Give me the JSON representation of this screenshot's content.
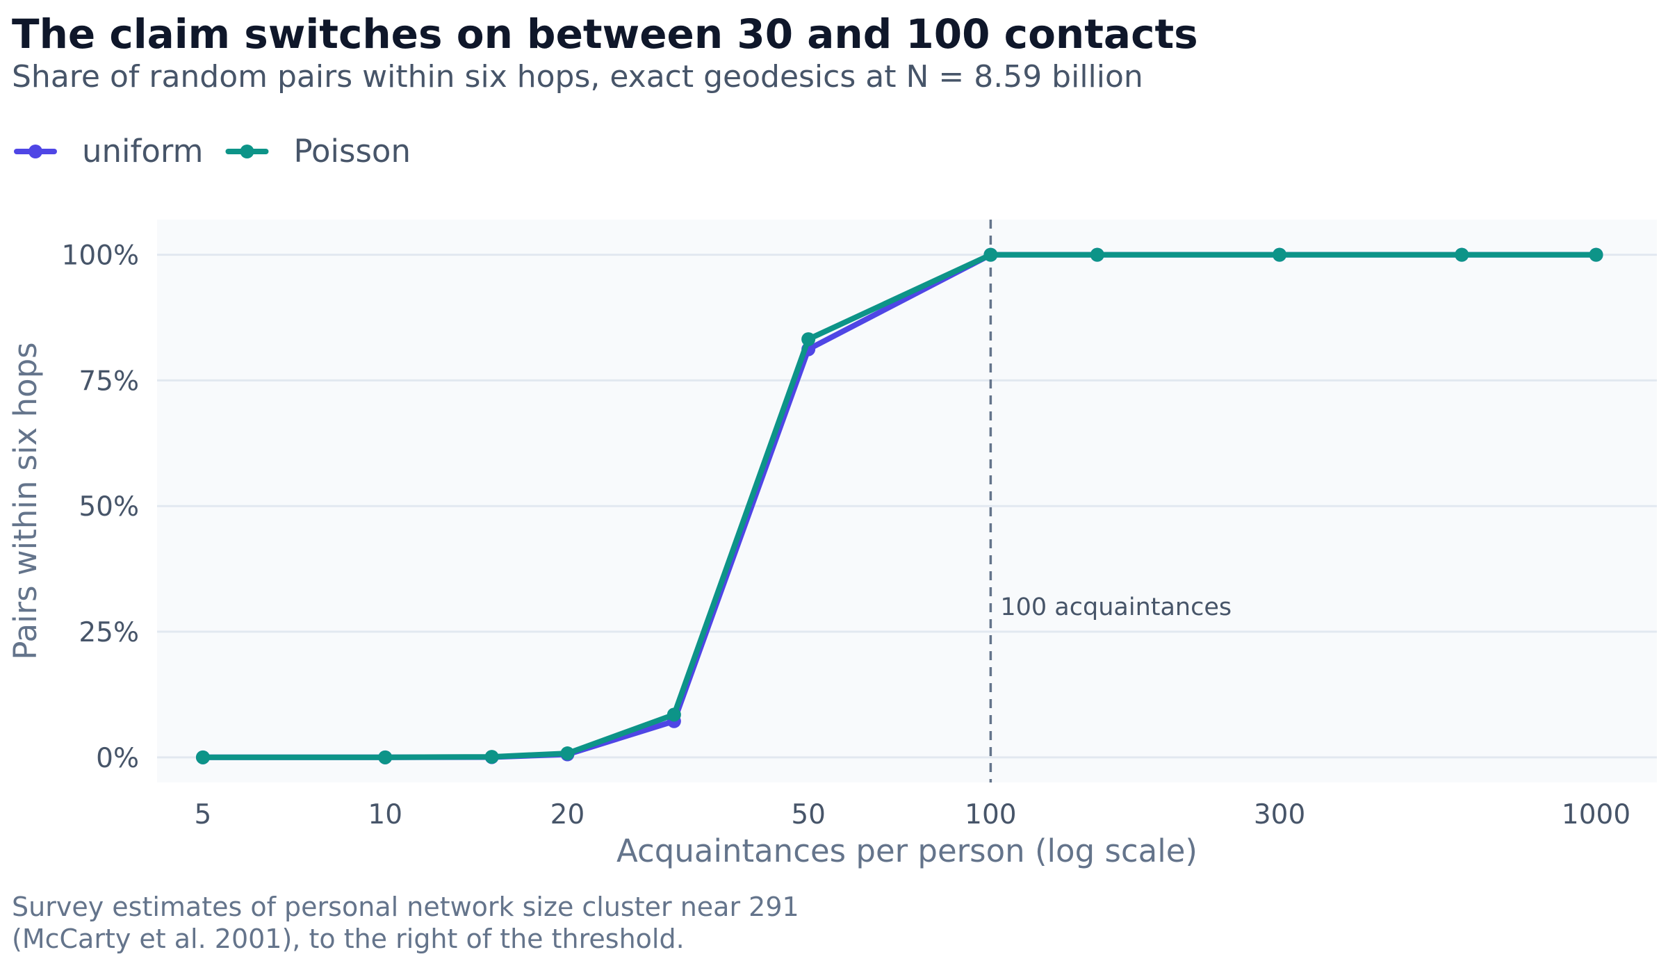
{
  "header": {
    "title": "The claim switches on between 30 and 100 contacts",
    "subtitle": "Share of random pairs within six hops, exact geodesics at N = 8.59 billion"
  },
  "footnote": {
    "line1": "Survey estimates of personal network size cluster near 291",
    "line2": "(McCarty et al. 2001), to the right of the threshold."
  },
  "chart_data": {
    "type": "line",
    "xlabel": "Acquaintances per person (log scale)",
    "ylabel": "Pairs within six hops",
    "x_scale": "log",
    "xlim": [
      4.2,
      1260
    ],
    "ylim": [
      -0.05,
      1.07
    ],
    "x_ticks": [
      5,
      10,
      20,
      50,
      100,
      300,
      1000
    ],
    "x_tick_labels": [
      "5",
      "10",
      "20",
      "50",
      "100",
      "300",
      "1000"
    ],
    "y_ticks": [
      0,
      0.25,
      0.5,
      0.75,
      1
    ],
    "y_tick_labels": [
      "0%",
      "25%",
      "50%",
      "75%",
      "100%"
    ],
    "grid": "horizontal",
    "legend_position": "top-left",
    "background_color": "#f8fafc",
    "grid_color": "#e2e8f0",
    "series": [
      {
        "name": "uniform",
        "color": "#4f46e5",
        "x": [
          5,
          10,
          15,
          20,
          30,
          50,
          100,
          150,
          300,
          600,
          1000
        ],
        "y": [
          0,
          0,
          0.0005,
          0.006,
          0.072,
          0.812,
          1,
          1,
          1,
          1,
          1
        ]
      },
      {
        "name": "Poisson",
        "color": "#0d9488",
        "x": [
          5,
          10,
          15,
          20,
          30,
          50,
          100,
          150,
          300,
          600,
          1000
        ],
        "y": [
          0,
          0,
          0.001,
          0.008,
          0.085,
          0.832,
          1,
          1,
          1,
          1,
          1
        ]
      }
    ],
    "annotations": [
      {
        "type": "vline",
        "x": 100,
        "label": "100 acquaintances",
        "color": "#64748b",
        "label_y": 0.3
      }
    ]
  }
}
